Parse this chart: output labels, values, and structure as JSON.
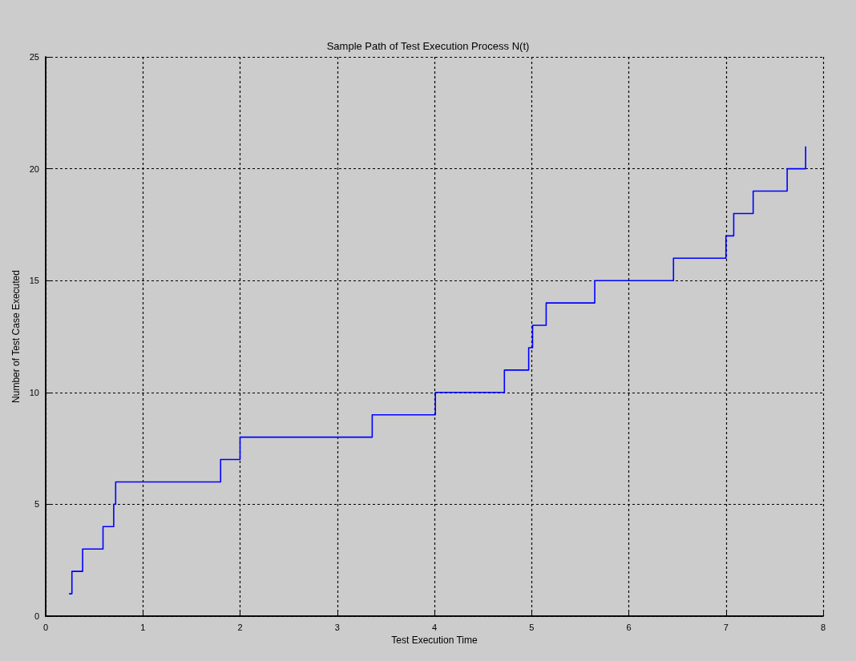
{
  "chart_data": {
    "type": "step",
    "title": "Sample Path of Test Execution Process N(t)",
    "xlabel": "Test Execution Time",
    "ylabel": "Number of Test Case Executed",
    "x": [
      0.24,
      0.27,
      0.38,
      0.59,
      0.7,
      0.72,
      1.8,
      2.0,
      3.36,
      4.01,
      4.72,
      4.97,
      5.01,
      5.15,
      5.65,
      6.46,
      7.0,
      7.08,
      7.28,
      7.63,
      7.82
    ],
    "series": [
      {
        "color": "#0000ff",
        "values": [
          1,
          2,
          3,
          4,
          5,
          6,
          7,
          8,
          9,
          10,
          11,
          12,
          13,
          14,
          15,
          16,
          17,
          18,
          19,
          20,
          21
        ]
      }
    ],
    "xlim": [
      0,
      8
    ],
    "xticks": [
      0,
      1,
      2,
      3,
      4,
      5,
      6,
      7,
      8
    ],
    "ylim": [
      0,
      25
    ],
    "yticks": [
      0,
      5,
      10,
      15,
      20,
      25
    ],
    "grid": true,
    "marker": "none",
    "line_style": "solid"
  }
}
